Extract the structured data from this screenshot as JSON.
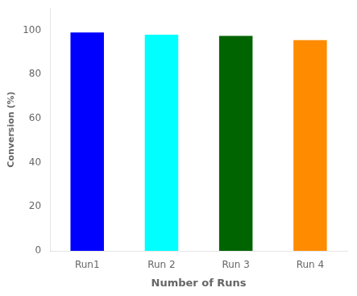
{
  "chart_data": {
    "type": "bar",
    "categories": [
      "Run1",
      "Run 2",
      "Run 3",
      "Run 4"
    ],
    "values": [
      99,
      98,
      97.5,
      95.5
    ],
    "colors": [
      "#0000FF",
      "#00FFFF",
      "#006400",
      "#FF8C00"
    ],
    "xlabel": "Number of Runs",
    "ylabel": "Conversion (%)",
    "ylim": [
      0,
      110
    ],
    "yticks": [
      0,
      20,
      40,
      60,
      80,
      100
    ],
    "grid": false
  }
}
